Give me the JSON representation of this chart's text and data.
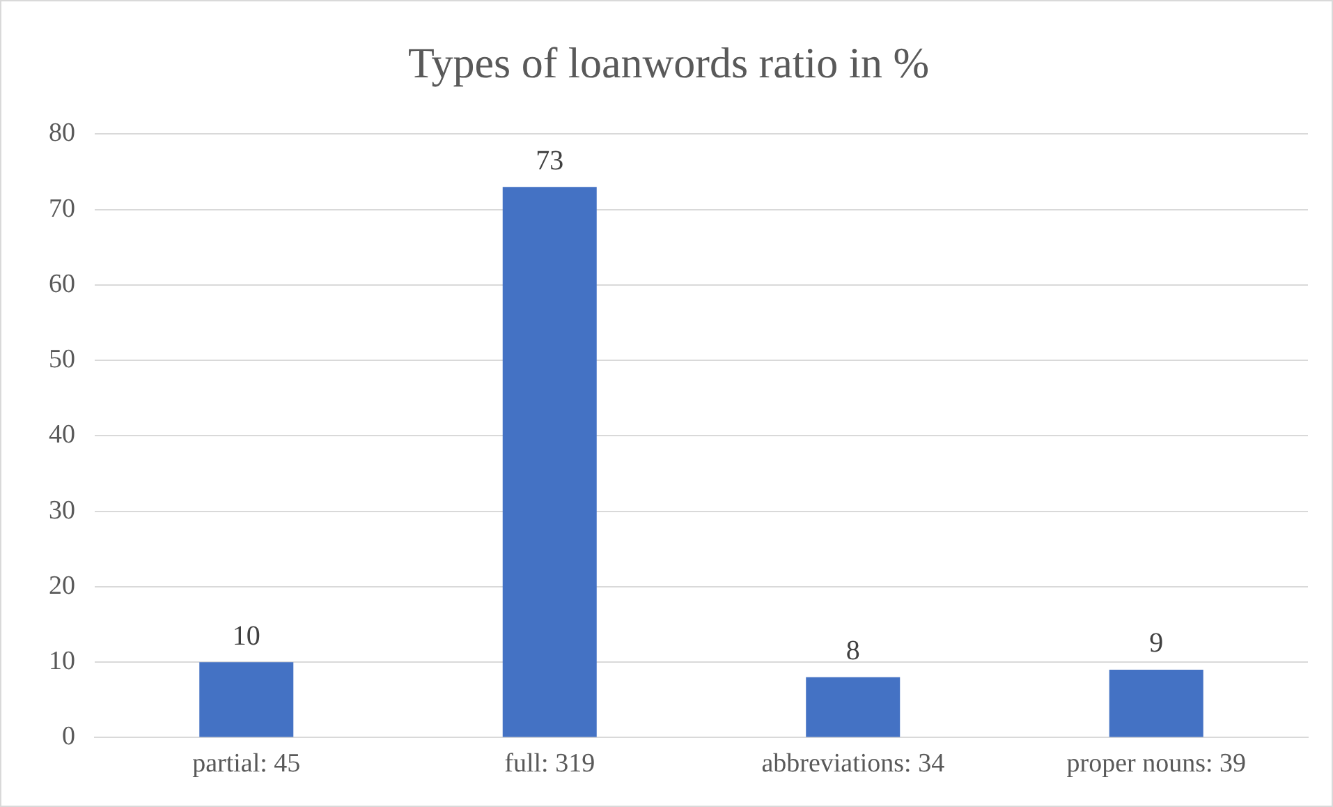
{
  "chart_data": {
    "type": "bar",
    "title": "Types of loanwords ratio in %",
    "categories": [
      "partial: 45",
      "full: 319",
      "abbreviations: 34",
      "proper nouns: 39"
    ],
    "values": [
      10,
      73,
      8,
      9
    ],
    "color": "#4472c4",
    "ylim": [
      0,
      80
    ],
    "yticks": [
      0,
      10,
      20,
      30,
      40,
      50,
      60,
      70,
      80
    ],
    "grid": "y",
    "data_labels": true,
    "legend": false
  }
}
